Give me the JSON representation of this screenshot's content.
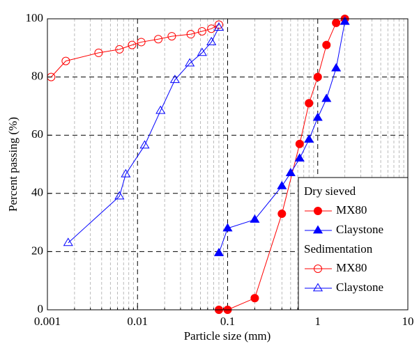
{
  "chart_data": {
    "type": "line",
    "x_label": "Particle size (mm)",
    "y_label": "Percent passing (%)",
    "xscale": "log",
    "xlim": [
      0.001,
      10
    ],
    "xticks": [
      0.001,
      0.01,
      0.1,
      1,
      10
    ],
    "xminorticks": [
      0.002,
      0.003,
      0.004,
      0.005,
      0.006,
      0.007,
      0.008,
      0.009,
      0.02,
      0.03,
      0.04,
      0.05,
      0.06,
      0.07,
      0.08,
      0.09,
      0.2,
      0.3,
      0.4,
      0.5,
      0.6,
      0.7,
      0.8,
      0.9,
      2,
      3,
      4,
      5,
      6,
      7,
      8,
      9
    ],
    "ylim": [
      0,
      100
    ],
    "yticks": [
      0,
      20,
      40,
      60,
      80,
      100
    ],
    "grid": true,
    "legend_position": "lower right",
    "series_groups": [
      {
        "name": "Dry sieved",
        "series": [
          {
            "name": "MX80",
            "color": "#ff0000",
            "marker": "circle",
            "filled": true,
            "x": [
              0.08,
              0.1,
              0.2,
              0.4,
              0.63,
              0.8,
              1.0,
              1.25,
              1.6,
              2.0
            ],
            "values": [
              0,
              0,
              4,
              33,
              57,
              71,
              80,
              91,
              98.6,
              100
            ]
          },
          {
            "name": "Claystone",
            "color": "#0000ff",
            "marker": "triangle",
            "filled": true,
            "x": [
              0.08,
              0.1,
              0.2,
              0.4,
              0.5,
              0.63,
              0.8,
              1.0,
              1.25,
              1.6,
              2.0
            ],
            "values": [
              19.5,
              28,
              31,
              42.5,
              47,
              52,
              58.5,
              66,
              72.5,
              83,
              99
            ]
          }
        ]
      },
      {
        "name": "Sedimentation",
        "series": [
          {
            "name": "MX80",
            "color": "#ff0000",
            "marker": "circle",
            "filled": false,
            "x": [
              0.0011,
              0.0016,
              0.0037,
              0.0063,
              0.0087,
              0.011,
              0.017,
              0.024,
              0.039,
              0.052,
              0.066,
              0.08
            ],
            "values": [
              80,
              85.5,
              88.3,
              89.5,
              91,
              92,
              93,
              94,
              94.7,
              95.7,
              96.6,
              98
            ]
          },
          {
            "name": "Claystone",
            "color": "#0000ff",
            "marker": "triangle",
            "filled": false,
            "x": [
              0.0017,
              0.0063,
              0.0074,
              0.012,
              0.018,
              0.026,
              0.038,
              0.052,
              0.066,
              0.08
            ],
            "values": [
              23,
              39,
              46.6,
              56.5,
              68.4,
              79,
              84.7,
              88.3,
              92,
              97
            ]
          }
        ]
      }
    ]
  }
}
